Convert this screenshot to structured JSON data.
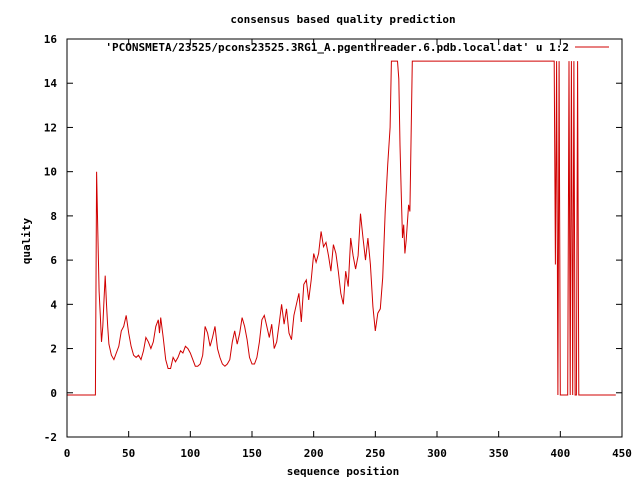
{
  "chart_data": {
    "type": "line",
    "title": "consensus based quality prediction",
    "xlabel": "sequence position",
    "ylabel": "quality",
    "xlim": [
      0,
      450
    ],
    "ylim": [
      -2,
      16
    ],
    "xticks": [
      0,
      50,
      100,
      150,
      200,
      250,
      300,
      350,
      400,
      450
    ],
    "yticks": [
      -2,
      0,
      2,
      4,
      6,
      8,
      10,
      12,
      14,
      16
    ],
    "grid": false,
    "legend_position": "top-right",
    "series": [
      {
        "name": "'PCONSMETA/23525/pcons23525.3RG1_A.pgenthreader.6.pdb.local.dat' u 1:2",
        "color": "#d00000",
        "points": [
          [
            0,
            -0.1
          ],
          [
            10,
            -0.1
          ],
          [
            20,
            -0.1
          ],
          [
            23,
            -0.1
          ],
          [
            24,
            10
          ],
          [
            25,
            7.3
          ],
          [
            26,
            4.6
          ],
          [
            27,
            3.5
          ],
          [
            28,
            2.3
          ],
          [
            29,
            3.0
          ],
          [
            30,
            4.2
          ],
          [
            31,
            5.3
          ],
          [
            32,
            4.0
          ],
          [
            33,
            3.0
          ],
          [
            34,
            2.2
          ],
          [
            36,
            1.7
          ],
          [
            38,
            1.5
          ],
          [
            40,
            1.8
          ],
          [
            42,
            2.1
          ],
          [
            44,
            2.8
          ],
          [
            46,
            3.0
          ],
          [
            48,
            3.5
          ],
          [
            50,
            2.7
          ],
          [
            52,
            2.1
          ],
          [
            54,
            1.7
          ],
          [
            56,
            1.6
          ],
          [
            58,
            1.7
          ],
          [
            60,
            1.5
          ],
          [
            62,
            1.9
          ],
          [
            64,
            2.5
          ],
          [
            66,
            2.3
          ],
          [
            68,
            2.0
          ],
          [
            70,
            2.3
          ],
          [
            72,
            3.0
          ],
          [
            74,
            3.3
          ],
          [
            75,
            2.7
          ],
          [
            76,
            3.4
          ],
          [
            78,
            2.5
          ],
          [
            80,
            1.5
          ],
          [
            82,
            1.1
          ],
          [
            84,
            1.1
          ],
          [
            86,
            1.6
          ],
          [
            88,
            1.4
          ],
          [
            90,
            1.6
          ],
          [
            92,
            1.9
          ],
          [
            94,
            1.8
          ],
          [
            96,
            2.1
          ],
          [
            98,
            2.0
          ],
          [
            100,
            1.8
          ],
          [
            102,
            1.5
          ],
          [
            104,
            1.2
          ],
          [
            106,
            1.2
          ],
          [
            108,
            1.3
          ],
          [
            110,
            1.7
          ],
          [
            112,
            3.0
          ],
          [
            114,
            2.7
          ],
          [
            116,
            2.1
          ],
          [
            118,
            2.5
          ],
          [
            120,
            3.0
          ],
          [
            122,
            2.0
          ],
          [
            124,
            1.6
          ],
          [
            126,
            1.3
          ],
          [
            128,
            1.2
          ],
          [
            130,
            1.3
          ],
          [
            132,
            1.5
          ],
          [
            134,
            2.3
          ],
          [
            136,
            2.8
          ],
          [
            138,
            2.2
          ],
          [
            140,
            2.7
          ],
          [
            142,
            3.4
          ],
          [
            144,
            3.0
          ],
          [
            146,
            2.4
          ],
          [
            148,
            1.6
          ],
          [
            150,
            1.3
          ],
          [
            152,
            1.3
          ],
          [
            154,
            1.6
          ],
          [
            156,
            2.3
          ],
          [
            158,
            3.3
          ],
          [
            160,
            3.5
          ],
          [
            162,
            3.0
          ],
          [
            164,
            2.5
          ],
          [
            166,
            3.1
          ],
          [
            168,
            2.0
          ],
          [
            170,
            2.3
          ],
          [
            172,
            3.1
          ],
          [
            174,
            4.0
          ],
          [
            176,
            3.1
          ],
          [
            178,
            3.8
          ],
          [
            180,
            2.7
          ],
          [
            182,
            2.4
          ],
          [
            184,
            3.5
          ],
          [
            186,
            4.0
          ],
          [
            188,
            4.5
          ],
          [
            190,
            3.2
          ],
          [
            192,
            4.9
          ],
          [
            194,
            5.1
          ],
          [
            196,
            4.2
          ],
          [
            198,
            5.1
          ],
          [
            200,
            6.3
          ],
          [
            202,
            5.9
          ],
          [
            204,
            6.3
          ],
          [
            206,
            7.3
          ],
          [
            208,
            6.6
          ],
          [
            210,
            6.8
          ],
          [
            212,
            6.2
          ],
          [
            214,
            5.5
          ],
          [
            216,
            6.7
          ],
          [
            218,
            6.3
          ],
          [
            220,
            5.5
          ],
          [
            222,
            4.5
          ],
          [
            224,
            4.0
          ],
          [
            226,
            5.5
          ],
          [
            228,
            4.8
          ],
          [
            230,
            7.0
          ],
          [
            232,
            6.2
          ],
          [
            234,
            5.6
          ],
          [
            236,
            6.2
          ],
          [
            238,
            8.1
          ],
          [
            240,
            7.0
          ],
          [
            242,
            6.0
          ],
          [
            244,
            7.0
          ],
          [
            246,
            5.8
          ],
          [
            248,
            3.9
          ],
          [
            250,
            2.8
          ],
          [
            252,
            3.6
          ],
          [
            254,
            3.8
          ],
          [
            256,
            5.2
          ],
          [
            258,
            8.2
          ],
          [
            260,
            10.3
          ],
          [
            262,
            12.0
          ],
          [
            263,
            15.0
          ],
          [
            268,
            15.0
          ],
          [
            269,
            14.2
          ],
          [
            270,
            11.2
          ],
          [
            271,
            9.1
          ],
          [
            272,
            7.0
          ],
          [
            273,
            7.6
          ],
          [
            274,
            6.3
          ],
          [
            275,
            6.9
          ],
          [
            277,
            8.5
          ],
          [
            278,
            8.2
          ],
          [
            280,
            15.0
          ],
          [
            300,
            15.0
          ],
          [
            350,
            15.0
          ],
          [
            395,
            15.0
          ],
          [
            396,
            5.8
          ],
          [
            397,
            15.0
          ],
          [
            398,
            -0.1
          ],
          [
            399,
            15.0
          ],
          [
            400,
            -0.1
          ],
          [
            402,
            -0.1
          ],
          [
            406,
            -0.1
          ],
          [
            407,
            15.0
          ],
          [
            408,
            -0.1
          ],
          [
            409,
            15.0
          ],
          [
            410,
            -0.1
          ],
          [
            411,
            15.0
          ],
          [
            412,
            -0.1
          ],
          [
            413,
            -0.1
          ],
          [
            414,
            15.0
          ],
          [
            415,
            -0.1
          ],
          [
            420,
            -0.1
          ],
          [
            445,
            -0.1
          ]
        ]
      }
    ]
  }
}
